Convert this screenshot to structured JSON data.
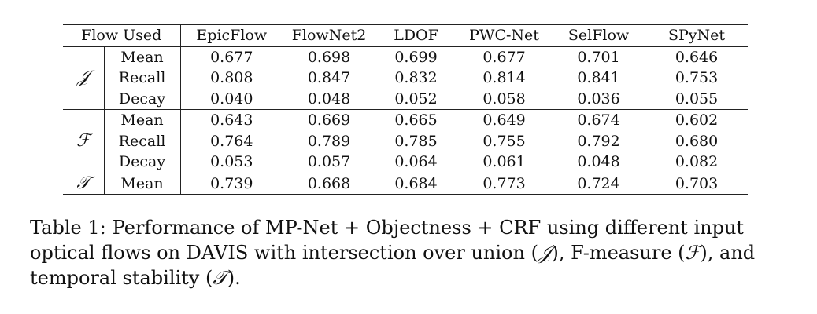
{
  "table": {
    "header": {
      "flow_used_label": "Flow Used",
      "columns": [
        "EpicFlow",
        "FlowNet2",
        "LDOF",
        "PWC-Net",
        "SelFlow",
        "SPyNet"
      ]
    },
    "groups": [
      {
        "symbol": "𝒥",
        "rows": [
          {
            "metric": "Mean",
            "values": [
              "0.677",
              "0.698",
              "0.699",
              "0.677",
              "0.701",
              "0.646"
            ]
          },
          {
            "metric": "Recall",
            "values": [
              "0.808",
              "0.847",
              "0.832",
              "0.814",
              "0.841",
              "0.753"
            ]
          },
          {
            "metric": "Decay",
            "values": [
              "0.040",
              "0.048",
              "0.052",
              "0.058",
              "0.036",
              "0.055"
            ]
          }
        ]
      },
      {
        "symbol": "ℱ",
        "rows": [
          {
            "metric": "Mean",
            "values": [
              "0.643",
              "0.669",
              "0.665",
              "0.649",
              "0.674",
              "0.602"
            ]
          },
          {
            "metric": "Recall",
            "values": [
              "0.764",
              "0.789",
              "0.785",
              "0.755",
              "0.792",
              "0.680"
            ]
          },
          {
            "metric": "Decay",
            "values": [
              "0.053",
              "0.057",
              "0.064",
              "0.061",
              "0.048",
              "0.082"
            ]
          }
        ]
      },
      {
        "symbol": "𝒯",
        "rows": [
          {
            "metric": "Mean",
            "values": [
              "0.739",
              "0.668",
              "0.684",
              "0.773",
              "0.724",
              "0.703"
            ]
          }
        ]
      }
    ]
  },
  "caption": {
    "label": "Table 1:",
    "text_part1": "Performance of MP-Net + Objectness + CRF using different input optical flows on DAVIS with intersection over union (",
    "sym_j": "𝒥",
    "text_part2": "), F-measure (",
    "sym_f": "ℱ",
    "text_part3": "), and temporal stability (",
    "sym_t": "𝒯",
    "text_part4": ")."
  }
}
